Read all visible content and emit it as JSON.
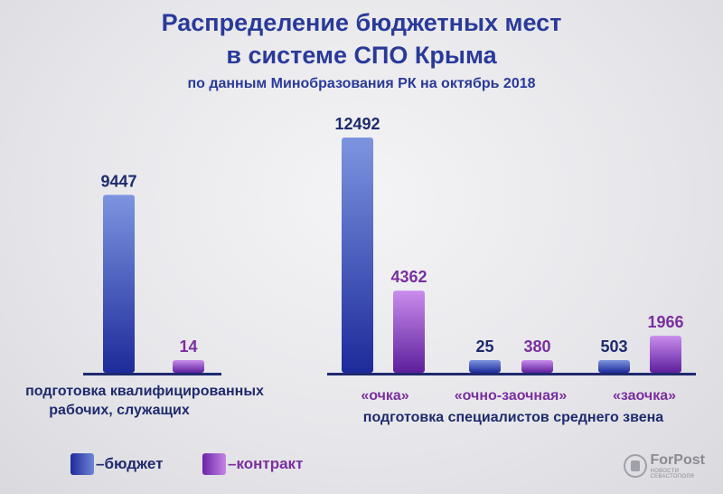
{
  "header": {
    "line1": "Распределение бюджетных мест",
    "line2": "в системе СПО Крыма",
    "line3": "по данным Минобразования РК на октябрь 2018"
  },
  "chart_data": {
    "type": "bar",
    "panels": [
      {
        "group_label": "подготовка квалифицированных\nрабочих, служащих",
        "categories": [
          ""
        ],
        "series": [
          {
            "name": "бюджет",
            "values": [
              9447
            ]
          },
          {
            "name": "контракт",
            "values": [
              14
            ]
          }
        ]
      },
      {
        "group_label": "подготовка специалистов среднего звена",
        "categories": [
          "«очка»",
          "«очно-заочная»",
          "«заочка»"
        ],
        "series": [
          {
            "name": "бюджет",
            "values": [
              12492,
              25,
              503
            ]
          },
          {
            "name": "контракт",
            "values": [
              4362,
              380,
              1966
            ]
          }
        ]
      }
    ],
    "ylim": [
      0,
      12492
    ],
    "legend_position": "bottom-left",
    "grid": false
  },
  "legend": {
    "budget": "–бюджет",
    "contract": "–контракт"
  },
  "logo": {
    "name": "ForPost",
    "tagline": "НОВОСТИ СЕВАСТОПОЛЯ"
  },
  "colors": {
    "title": "#2a3a9a",
    "budget_dark": "#1d2a9a",
    "budget_light": "#6d86d8",
    "contract_dark": "#6a23a6",
    "contract_light": "#c486e8",
    "budget_label": "#1f2a6e",
    "contract_label": "#7a2fa0"
  }
}
